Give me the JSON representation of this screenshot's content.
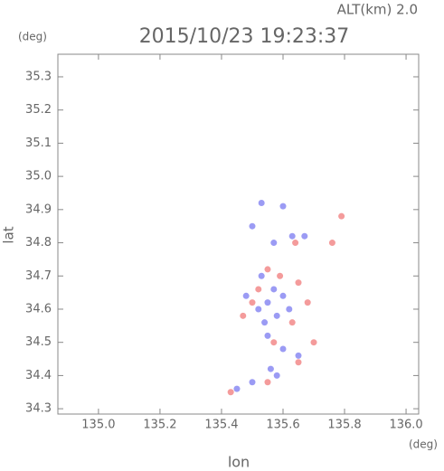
{
  "chart_data": {
    "type": "scatter",
    "title": "2015/10/23 19:23:37",
    "annotation": "ALT(km) 2.0",
    "y_unit": "(deg)",
    "x_unit": "(deg)",
    "xlabel": "lon",
    "ylabel": "lat",
    "xlim": [
      134.868,
      136.041
    ],
    "ylim": [
      34.284,
      35.368
    ],
    "xticks": [
      {
        "value": 135.0,
        "label": "135.0"
      },
      135.2,
      135.4,
      135.6,
      135.8,
      {
        "value": 136.0,
        "label": "136.0"
      }
    ],
    "yticks": [
      34.3,
      34.4,
      34.5,
      34.6,
      34.7,
      34.8,
      34.9,
      {
        "value": 35.0,
        "label": "35.0"
      },
      35.1,
      35.2,
      35.3
    ],
    "series": [
      {
        "color": "#8a8af2",
        "x": [
          135.53,
          135.6,
          135.5,
          135.57,
          135.63,
          135.67,
          135.53,
          135.57,
          135.6,
          135.55,
          135.52,
          135.58,
          135.62,
          135.55,
          135.6,
          135.56,
          135.58,
          135.5,
          135.45,
          135.65,
          135.54,
          135.48
        ],
        "y": [
          34.92,
          34.91,
          34.85,
          34.8,
          34.82,
          34.82,
          34.7,
          34.66,
          34.64,
          34.62,
          34.6,
          34.58,
          34.6,
          34.52,
          34.48,
          34.42,
          34.4,
          34.38,
          34.36,
          34.46,
          34.56,
          34.64
        ]
      },
      {
        "color": "#f28a8a",
        "x": [
          135.79,
          135.64,
          135.55,
          135.52,
          135.59,
          135.65,
          135.5,
          135.63,
          135.57,
          135.65,
          135.55,
          135.43,
          135.7,
          135.76,
          135.47,
          135.68
        ],
        "y": [
          34.88,
          34.8,
          34.72,
          34.66,
          34.7,
          34.68,
          34.62,
          34.56,
          34.5,
          34.44,
          34.38,
          34.35,
          34.5,
          34.8,
          34.58,
          34.62
        ]
      }
    ]
  }
}
